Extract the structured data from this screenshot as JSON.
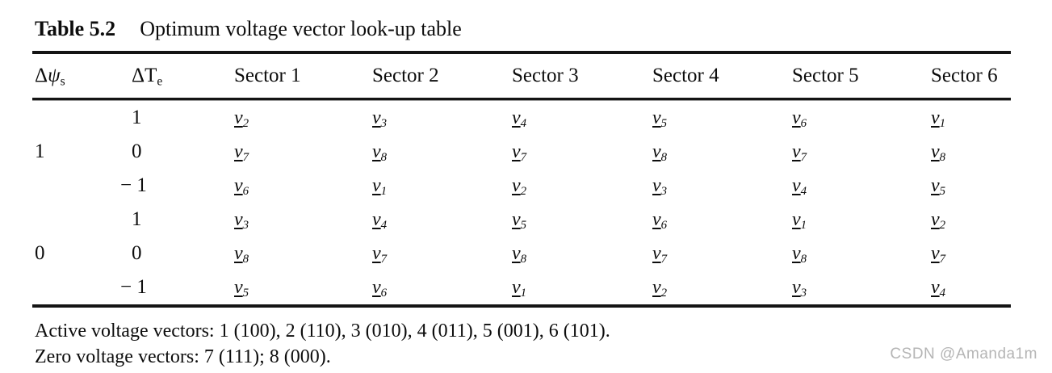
{
  "caption": {
    "label": "Table 5.2",
    "title": "Optimum voltage vector look-up table"
  },
  "table": {
    "vector_symbol": "v",
    "headers": {
      "flux": {
        "delta": "Δ",
        "symbol": "ψ",
        "sub": "s"
      },
      "torque": {
        "delta": "Δ",
        "symbol": "T",
        "sub": "e"
      },
      "sectors": [
        "Sector 1",
        "Sector 2",
        "Sector 3",
        "Sector 4",
        "Sector 5",
        "Sector 6"
      ]
    },
    "rows": [
      {
        "flux": "",
        "torque": "1",
        "vectors": [
          "2",
          "3",
          "4",
          "5",
          "6",
          "1"
        ]
      },
      {
        "flux": "1",
        "torque": "0",
        "vectors": [
          "7",
          "8",
          "7",
          "8",
          "7",
          "8"
        ]
      },
      {
        "flux": "",
        "torque": "− 1",
        "vectors": [
          "6",
          "1",
          "2",
          "3",
          "4",
          "5"
        ]
      },
      {
        "flux": "",
        "torque": "1",
        "vectors": [
          "3",
          "4",
          "5",
          "6",
          "1",
          "2"
        ]
      },
      {
        "flux": "0",
        "torque": "0",
        "vectors": [
          "8",
          "7",
          "8",
          "7",
          "8",
          "7"
        ]
      },
      {
        "flux": "",
        "torque": "− 1",
        "vectors": [
          "5",
          "6",
          "1",
          "2",
          "3",
          "4"
        ]
      }
    ]
  },
  "notes": [
    "Active voltage vectors: 1 (100), 2 (110), 3 (010), 4 (011), 5 (001), 6 (101).",
    "Zero voltage vectors: 7 (111); 8 (000)."
  ],
  "watermark": "CSDN @Amanda1m",
  "colors": {
    "text": "#0d0d0d",
    "rule": "#141414",
    "watermark": "#b5b5b5"
  }
}
